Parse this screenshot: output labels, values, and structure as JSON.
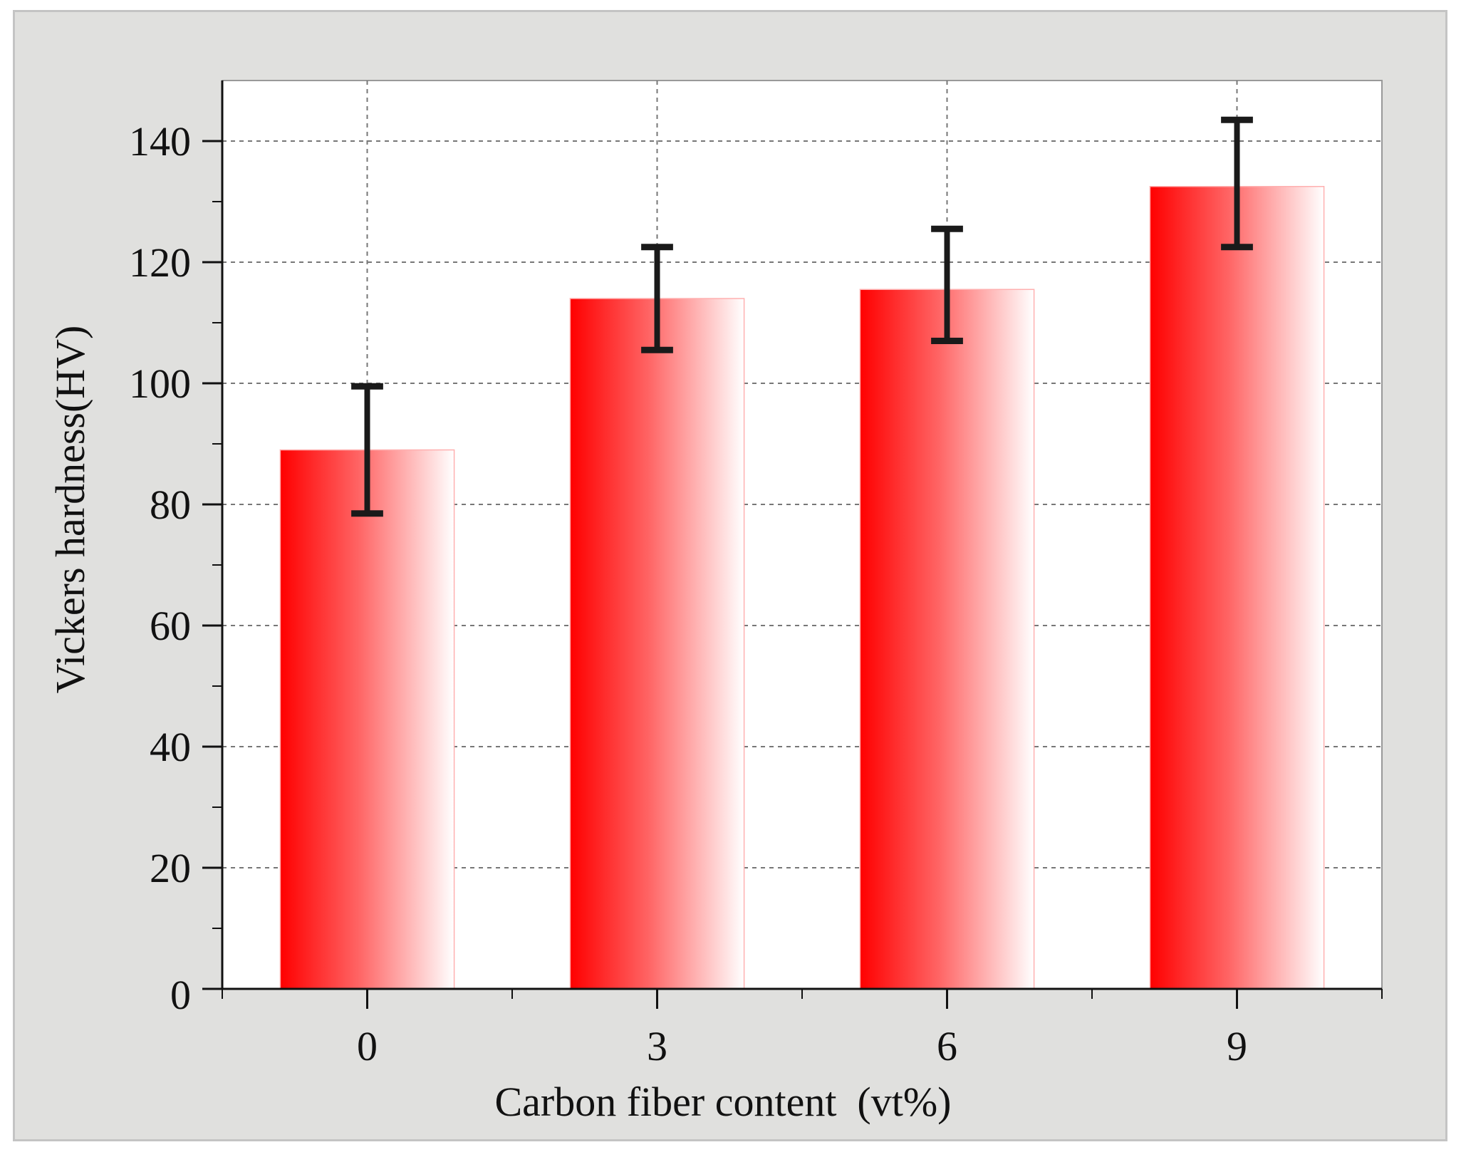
{
  "chart_data": {
    "type": "bar",
    "title": "",
    "xlabel": "Carbon fiber content  (vt%)",
    "ylabel": "Vickers hardness(HV)",
    "categories": [
      "0",
      "3",
      "6",
      "9"
    ],
    "series": [
      {
        "values": [
          89,
          114,
          115.5,
          132.5
        ],
        "error_low": [
          78.5,
          105.5,
          107,
          122.5
        ],
        "error_high": [
          99.5,
          122.5,
          125.5,
          143.5
        ]
      }
    ],
    "ylim": [
      0,
      150
    ],
    "yticks": [
      "0",
      "20",
      "40",
      "60",
      "80",
      "100",
      "120",
      "140"
    ],
    "grid": true,
    "legend": "none",
    "colors": {
      "bar_start": "#ff0000",
      "bar_end": "#ffffff",
      "error_bar": "#1a1a1a",
      "grid": "#777777"
    }
  }
}
